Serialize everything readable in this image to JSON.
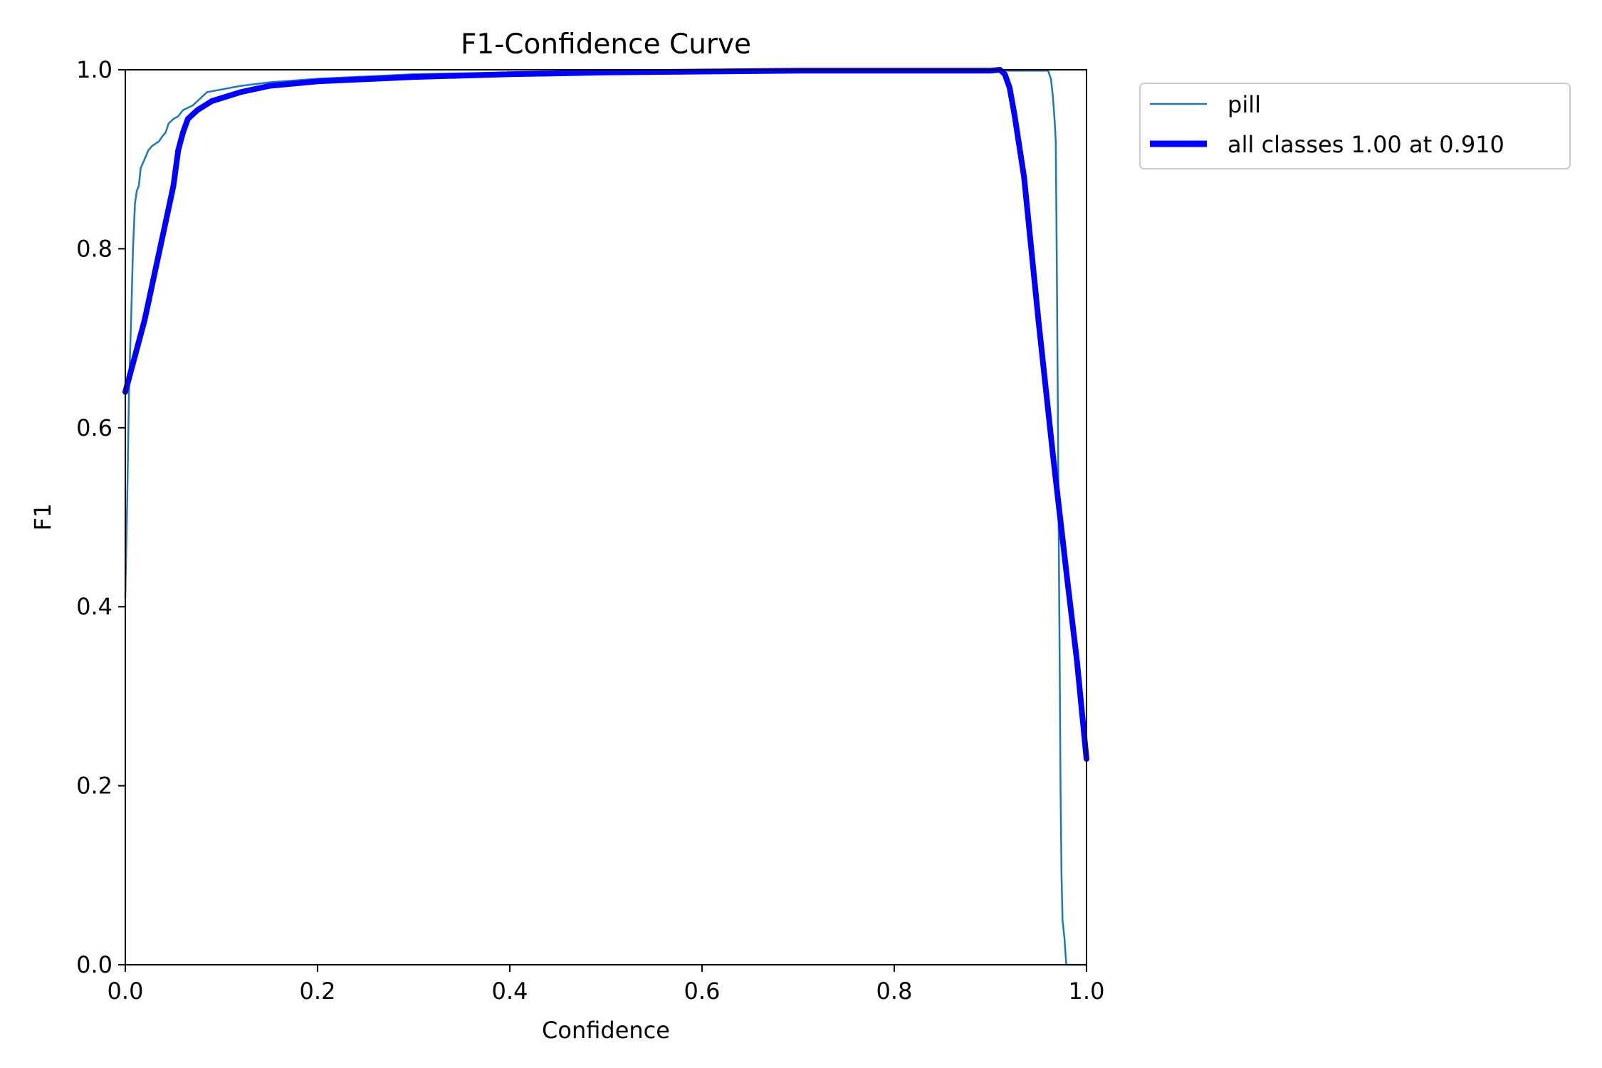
{
  "chart_data": {
    "type": "line",
    "title": "F1-Confidence Curve",
    "xlabel": "Confidence",
    "ylabel": "F1",
    "xlim": [
      0,
      1
    ],
    "ylim": [
      0,
      1
    ],
    "grid": false,
    "legend_position": "outside-top-right",
    "xticks": [
      "0.0",
      "0.2",
      "0.4",
      "0.6",
      "0.8",
      "1.0"
    ],
    "yticks": [
      "0.0",
      "0.2",
      "0.4",
      "0.6",
      "0.8",
      "1.0"
    ],
    "series": [
      {
        "name": "pill",
        "color": "#1f77b4",
        "points": [
          [
            0.0,
            0.41
          ],
          [
            0.002,
            0.52
          ],
          [
            0.004,
            0.65
          ],
          [
            0.006,
            0.72
          ],
          [
            0.008,
            0.8
          ],
          [
            0.01,
            0.85
          ],
          [
            0.012,
            0.865
          ],
          [
            0.014,
            0.87
          ],
          [
            0.016,
            0.89
          ],
          [
            0.018,
            0.895
          ],
          [
            0.02,
            0.9
          ],
          [
            0.024,
            0.91
          ],
          [
            0.028,
            0.915
          ],
          [
            0.035,
            0.92
          ],
          [
            0.038,
            0.925
          ],
          [
            0.042,
            0.93
          ],
          [
            0.045,
            0.94
          ],
          [
            0.05,
            0.945
          ],
          [
            0.055,
            0.948
          ],
          [
            0.06,
            0.955
          ],
          [
            0.07,
            0.96
          ],
          [
            0.08,
            0.97
          ],
          [
            0.085,
            0.975
          ],
          [
            0.1,
            0.978
          ],
          [
            0.12,
            0.982
          ],
          [
            0.15,
            0.986
          ],
          [
            0.2,
            0.99
          ],
          [
            0.3,
            0.995
          ],
          [
            0.4,
            0.997
          ],
          [
            0.5,
            0.998
          ],
          [
            0.6,
            0.999
          ],
          [
            0.7,
            0.999
          ],
          [
            0.8,
            0.999
          ],
          [
            0.9,
            0.999
          ],
          [
            0.96,
            0.999
          ],
          [
            0.963,
            0.99
          ],
          [
            0.965,
            0.97
          ],
          [
            0.967,
            0.94
          ],
          [
            0.968,
            0.92
          ],
          [
            0.969,
            0.8
          ],
          [
            0.97,
            0.65
          ],
          [
            0.971,
            0.5
          ],
          [
            0.972,
            0.35
          ],
          [
            0.973,
            0.2
          ],
          [
            0.974,
            0.1
          ],
          [
            0.975,
            0.05
          ],
          [
            0.977,
            0.03
          ],
          [
            0.979,
            0.0
          ],
          [
            1.0,
            0.0
          ]
        ]
      },
      {
        "name": "all classes 1.00 at 0.910",
        "color": "#0000ff",
        "points": [
          [
            0.0,
            0.64
          ],
          [
            0.01,
            0.68
          ],
          [
            0.02,
            0.72
          ],
          [
            0.03,
            0.77
          ],
          [
            0.04,
            0.82
          ],
          [
            0.05,
            0.87
          ],
          [
            0.055,
            0.91
          ],
          [
            0.06,
            0.93
          ],
          [
            0.065,
            0.945
          ],
          [
            0.075,
            0.955
          ],
          [
            0.09,
            0.965
          ],
          [
            0.12,
            0.975
          ],
          [
            0.15,
            0.982
          ],
          [
            0.2,
            0.987
          ],
          [
            0.3,
            0.992
          ],
          [
            0.4,
            0.995
          ],
          [
            0.5,
            0.997
          ],
          [
            0.6,
            0.998
          ],
          [
            0.7,
            0.999
          ],
          [
            0.8,
            0.999
          ],
          [
            0.9,
            0.999
          ],
          [
            0.91,
            1.0
          ],
          [
            0.915,
            0.995
          ],
          [
            0.92,
            0.98
          ],
          [
            0.925,
            0.95
          ],
          [
            0.935,
            0.88
          ],
          [
            0.95,
            0.72
          ],
          [
            0.965,
            0.57
          ],
          [
            0.98,
            0.43
          ],
          [
            0.99,
            0.34
          ],
          [
            1.0,
            0.23
          ]
        ]
      }
    ]
  }
}
